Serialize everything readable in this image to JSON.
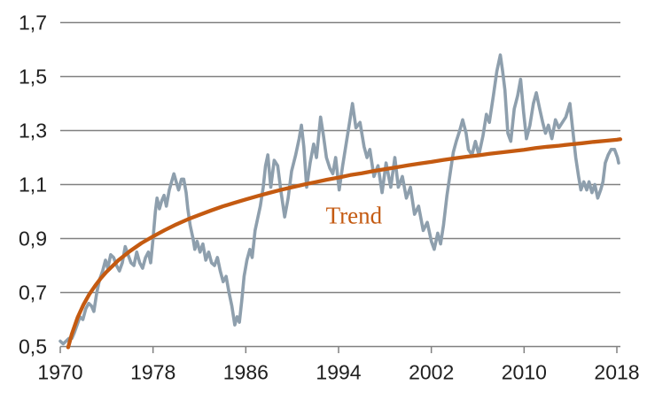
{
  "chart_data": {
    "type": "line",
    "title": "",
    "xlabel": "",
    "ylabel": "",
    "grid": true,
    "decimal_style": "comma",
    "x_axis": {
      "range": [
        1970,
        2018.3
      ],
      "ticks": [
        1970,
        1978,
        1986,
        1994,
        2002,
        2010,
        2018
      ]
    },
    "y_axis": {
      "range": [
        0.5,
        1.7
      ],
      "ticks": [
        {
          "label": "1,7",
          "value": 1.7
        },
        {
          "label": "1,5",
          "value": 1.5
        },
        {
          "label": "1,3",
          "value": 1.3
        },
        {
          "label": "1,1",
          "value": 1.1
        },
        {
          "label": "0,9",
          "value": 0.9
        },
        {
          "label": "0,7",
          "value": 0.7
        },
        {
          "label": "0,5",
          "value": 0.5
        }
      ]
    },
    "annotation": {
      "text": "Trend",
      "x_year": 1992.9,
      "y_value": 0.955
    },
    "colors": {
      "grid": "#808080",
      "axis": "#808080",
      "tick_label": "#202020",
      "actual_line": "#8E9FAD",
      "trend_line": "#C45A11",
      "background": "#FFFFFF"
    },
    "series": [
      {
        "name": "actual",
        "color": "#8E9FAD",
        "stroke_width": 3.6,
        "points": [
          [
            1970.0,
            0.52
          ],
          [
            1970.25,
            0.51
          ],
          [
            1970.5,
            0.52
          ],
          [
            1970.75,
            0.53
          ],
          [
            1971.0,
            0.53
          ],
          [
            1971.2,
            0.55
          ],
          [
            1971.45,
            0.58
          ],
          [
            1971.7,
            0.61
          ],
          [
            1971.95,
            0.6
          ],
          [
            1972.2,
            0.64
          ],
          [
            1972.45,
            0.66
          ],
          [
            1972.7,
            0.65
          ],
          [
            1972.9,
            0.63
          ],
          [
            1973.15,
            0.7
          ],
          [
            1973.4,
            0.75
          ],
          [
            1973.65,
            0.78
          ],
          [
            1973.9,
            0.82
          ],
          [
            1974.1,
            0.79
          ],
          [
            1974.35,
            0.84
          ],
          [
            1974.6,
            0.83
          ],
          [
            1974.85,
            0.8
          ],
          [
            1975.1,
            0.78
          ],
          [
            1975.35,
            0.81
          ],
          [
            1975.6,
            0.87
          ],
          [
            1975.85,
            0.84
          ],
          [
            1976.1,
            0.81
          ],
          [
            1976.35,
            0.8
          ],
          [
            1976.6,
            0.85
          ],
          [
            1976.85,
            0.81
          ],
          [
            1977.1,
            0.79
          ],
          [
            1977.35,
            0.83
          ],
          [
            1977.6,
            0.85
          ],
          [
            1977.8,
            0.81
          ],
          [
            1978.0,
            0.9
          ],
          [
            1978.2,
            1.0
          ],
          [
            1978.35,
            1.05
          ],
          [
            1978.55,
            1.01
          ],
          [
            1978.75,
            1.04
          ],
          [
            1978.95,
            1.06
          ],
          [
            1979.15,
            1.02
          ],
          [
            1979.4,
            1.08
          ],
          [
            1979.6,
            1.11
          ],
          [
            1979.8,
            1.14
          ],
          [
            1980.0,
            1.11
          ],
          [
            1980.2,
            1.08
          ],
          [
            1980.45,
            1.12
          ],
          [
            1980.65,
            1.12
          ],
          [
            1980.85,
            1.07
          ],
          [
            1981.0,
            1.01
          ],
          [
            1981.2,
            0.95
          ],
          [
            1981.45,
            0.9
          ],
          [
            1981.6,
            0.86
          ],
          [
            1981.8,
            0.89
          ],
          [
            1982.05,
            0.85
          ],
          [
            1982.3,
            0.88
          ],
          [
            1982.55,
            0.82
          ],
          [
            1982.8,
            0.85
          ],
          [
            1983.05,
            0.81
          ],
          [
            1983.3,
            0.8
          ],
          [
            1983.55,
            0.83
          ],
          [
            1983.8,
            0.78
          ],
          [
            1984.05,
            0.74
          ],
          [
            1984.3,
            0.76
          ],
          [
            1984.55,
            0.7
          ],
          [
            1984.8,
            0.65
          ],
          [
            1985.05,
            0.58
          ],
          [
            1985.25,
            0.61
          ],
          [
            1985.45,
            0.59
          ],
          [
            1985.65,
            0.67
          ],
          [
            1985.85,
            0.76
          ],
          [
            1986.1,
            0.82
          ],
          [
            1986.35,
            0.86
          ],
          [
            1986.55,
            0.83
          ],
          [
            1986.8,
            0.93
          ],
          [
            1987.0,
            0.97
          ],
          [
            1987.25,
            1.02
          ],
          [
            1987.5,
            1.09
          ],
          [
            1987.7,
            1.17
          ],
          [
            1987.9,
            1.21
          ],
          [
            1988.15,
            1.09
          ],
          [
            1988.45,
            1.19
          ],
          [
            1988.75,
            1.17
          ],
          [
            1989.05,
            1.07
          ],
          [
            1989.35,
            0.98
          ],
          [
            1989.65,
            1.05
          ],
          [
            1989.95,
            1.15
          ],
          [
            1990.3,
            1.21
          ],
          [
            1990.6,
            1.27
          ],
          [
            1990.8,
            1.32
          ],
          [
            1991.0,
            1.24
          ],
          [
            1991.25,
            1.09
          ],
          [
            1991.55,
            1.18
          ],
          [
            1991.85,
            1.25
          ],
          [
            1992.1,
            1.2
          ],
          [
            1992.45,
            1.35
          ],
          [
            1992.7,
            1.28
          ],
          [
            1992.95,
            1.2
          ],
          [
            1993.25,
            1.16
          ],
          [
            1993.5,
            1.14
          ],
          [
            1993.75,
            1.2
          ],
          [
            1994.05,
            1.08
          ],
          [
            1994.35,
            1.17
          ],
          [
            1994.65,
            1.25
          ],
          [
            1994.95,
            1.33
          ],
          [
            1995.2,
            1.4
          ],
          [
            1995.5,
            1.31
          ],
          [
            1995.85,
            1.33
          ],
          [
            1996.2,
            1.24
          ],
          [
            1996.45,
            1.2
          ],
          [
            1996.7,
            1.23
          ],
          [
            1997.05,
            1.13
          ],
          [
            1997.4,
            1.17
          ],
          [
            1997.75,
            1.07
          ],
          [
            1998.1,
            1.18
          ],
          [
            1998.5,
            1.09
          ],
          [
            1998.85,
            1.2
          ],
          [
            1999.15,
            1.09
          ],
          [
            1999.5,
            1.13
          ],
          [
            1999.85,
            1.05
          ],
          [
            2000.2,
            1.09
          ],
          [
            2000.55,
            0.99
          ],
          [
            2000.9,
            1.02
          ],
          [
            2001.3,
            0.93
          ],
          [
            2001.65,
            0.96
          ],
          [
            2002.0,
            0.89
          ],
          [
            2002.25,
            0.86
          ],
          [
            2002.55,
            0.92
          ],
          [
            2002.8,
            0.88
          ],
          [
            2003.05,
            0.95
          ],
          [
            2003.35,
            1.06
          ],
          [
            2003.65,
            1.15
          ],
          [
            2003.9,
            1.22
          ],
          [
            2004.15,
            1.26
          ],
          [
            2004.45,
            1.3
          ],
          [
            2004.7,
            1.34
          ],
          [
            2005.0,
            1.29
          ],
          [
            2005.2,
            1.23
          ],
          [
            2005.5,
            1.21
          ],
          [
            2005.8,
            1.26
          ],
          [
            2006.1,
            1.21
          ],
          [
            2006.45,
            1.28
          ],
          [
            2006.75,
            1.36
          ],
          [
            2007.0,
            1.33
          ],
          [
            2007.35,
            1.43
          ],
          [
            2007.65,
            1.52
          ],
          [
            2007.95,
            1.58
          ],
          [
            2008.15,
            1.52
          ],
          [
            2008.35,
            1.45
          ],
          [
            2008.6,
            1.29
          ],
          [
            2008.85,
            1.26
          ],
          [
            2009.15,
            1.38
          ],
          [
            2009.45,
            1.43
          ],
          [
            2009.7,
            1.49
          ],
          [
            2009.95,
            1.37
          ],
          [
            2010.2,
            1.27
          ],
          [
            2010.5,
            1.32
          ],
          [
            2010.8,
            1.4
          ],
          [
            2011.05,
            1.44
          ],
          [
            2011.3,
            1.39
          ],
          [
            2011.6,
            1.33
          ],
          [
            2011.85,
            1.29
          ],
          [
            2012.1,
            1.32
          ],
          [
            2012.4,
            1.27
          ],
          [
            2012.7,
            1.34
          ],
          [
            2013.0,
            1.31
          ],
          [
            2013.3,
            1.33
          ],
          [
            2013.6,
            1.35
          ],
          [
            2013.95,
            1.4
          ],
          [
            2014.2,
            1.3
          ],
          [
            2014.45,
            1.2
          ],
          [
            2014.7,
            1.13
          ],
          [
            2014.9,
            1.08
          ],
          [
            2015.15,
            1.11
          ],
          [
            2015.4,
            1.08
          ],
          [
            2015.6,
            1.11
          ],
          [
            2015.85,
            1.07
          ],
          [
            2016.1,
            1.1
          ],
          [
            2016.35,
            1.05
          ],
          [
            2016.6,
            1.08
          ],
          [
            2016.8,
            1.11
          ],
          [
            2017.0,
            1.18
          ],
          [
            2017.25,
            1.21
          ],
          [
            2017.5,
            1.23
          ],
          [
            2017.8,
            1.23
          ],
          [
            2018.05,
            1.2
          ],
          [
            2018.15,
            1.18
          ]
        ]
      },
      {
        "name": "trend",
        "color": "#C45A11",
        "stroke_width": 4.3,
        "points": [
          [
            1970.68,
            0.497
          ],
          [
            1971.0,
            0.547
          ],
          [
            1971.5,
            0.608
          ],
          [
            1972.0,
            0.655
          ],
          [
            1972.5,
            0.693
          ],
          [
            1973.0,
            0.725
          ],
          [
            1973.5,
            0.753
          ],
          [
            1974.0,
            0.777
          ],
          [
            1975.0,
            0.819
          ],
          [
            1976.0,
            0.853
          ],
          [
            1977.0,
            0.883
          ],
          [
            1978.0,
            0.908
          ],
          [
            1979.0,
            0.931
          ],
          [
            1980.0,
            0.952
          ],
          [
            1981.0,
            0.971
          ],
          [
            1982.0,
            0.988
          ],
          [
            1983.0,
            1.004
          ],
          [
            1984.0,
            1.019
          ],
          [
            1985.0,
            1.032
          ],
          [
            1986.0,
            1.045
          ],
          [
            1987.0,
            1.057
          ],
          [
            1988.0,
            1.069
          ],
          [
            1989.0,
            1.08
          ],
          [
            1990.0,
            1.09
          ],
          [
            1991.0,
            1.1
          ],
          [
            1992.0,
            1.109
          ],
          [
            1993.0,
            1.118
          ],
          [
            1994.0,
            1.126
          ],
          [
            1995.0,
            1.135
          ],
          [
            1996.0,
            1.142
          ],
          [
            1997.0,
            1.15
          ],
          [
            1998.0,
            1.157
          ],
          [
            1999.0,
            1.164
          ],
          [
            2000.0,
            1.171
          ],
          [
            2001.0,
            1.178
          ],
          [
            2002.0,
            1.184
          ],
          [
            2003.0,
            1.191
          ],
          [
            2004.0,
            1.197
          ],
          [
            2005.0,
            1.203
          ],
          [
            2006.0,
            1.208
          ],
          [
            2007.0,
            1.214
          ],
          [
            2008.0,
            1.219
          ],
          [
            2009.0,
            1.224
          ],
          [
            2010.0,
            1.229
          ],
          [
            2011.0,
            1.235
          ],
          [
            2012.0,
            1.24
          ],
          [
            2013.0,
            1.244
          ],
          [
            2014.0,
            1.249
          ],
          [
            2015.0,
            1.253
          ],
          [
            2016.0,
            1.258
          ],
          [
            2017.0,
            1.262
          ],
          [
            2018.0,
            1.266
          ],
          [
            2018.3,
            1.268
          ]
        ]
      }
    ]
  }
}
